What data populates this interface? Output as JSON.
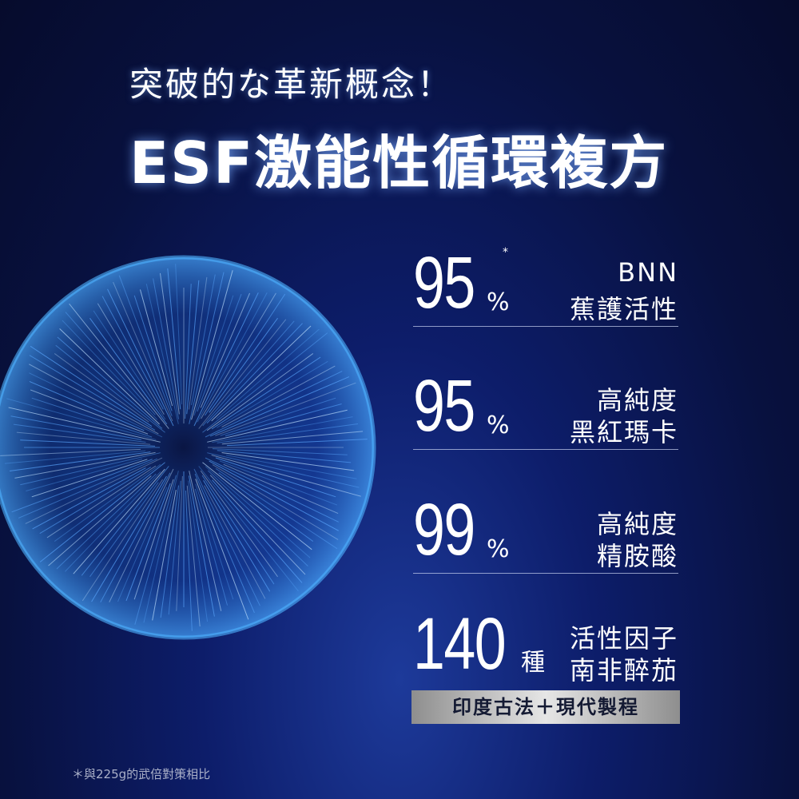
{
  "header": {
    "subtitle": "突破的な革新概念！",
    "title": "ESF激能性循環複方"
  },
  "stats": [
    {
      "number": "95",
      "unit": "%",
      "mark": "*",
      "line1": "BNN",
      "line2": "蕉護活性"
    },
    {
      "number": "95",
      "unit": "%",
      "line1": "高純度",
      "line2": "黑紅瑪卡"
    },
    {
      "number": "99",
      "unit": "%",
      "line1": "高純度",
      "line2": "精胺酸"
    },
    {
      "number": "140",
      "unit": "種",
      "line1": "活性因子",
      "line2": "南非醉茄"
    }
  ],
  "banner": "印度古法＋現代製程",
  "footnote": "＊與225g的武倍對策相比"
}
